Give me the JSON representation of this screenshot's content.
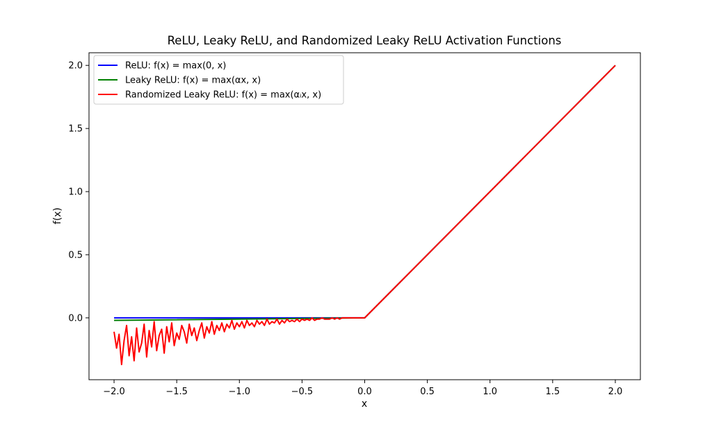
{
  "chart_data": {
    "type": "line",
    "title": "ReLU, Leaky ReLU, and Randomized Leaky ReLU Activation Functions",
    "xlabel": "x",
    "ylabel": "f(x)",
    "xlim": [
      -2.2,
      2.2
    ],
    "ylim": [
      -0.49,
      2.1
    ],
    "xticks": [
      -2.0,
      -1.5,
      -1.0,
      -0.5,
      0.0,
      0.5,
      1.0,
      1.5,
      2.0
    ],
    "xtick_labels": [
      "−2.0",
      "−1.5",
      "−1.0",
      "−0.5",
      "0.0",
      "0.5",
      "1.0",
      "1.5",
      "2.0"
    ],
    "yticks": [
      0.0,
      0.5,
      1.0,
      1.5,
      2.0
    ],
    "ytick_labels": [
      "0.0",
      "0.5",
      "1.0",
      "1.5",
      "2.0"
    ],
    "grid": false,
    "legend_position": "top-left",
    "series": [
      {
        "name": "ReLU: f(x) = max(0, x)",
        "color": "#0000ff",
        "x": [
          -2.0,
          0.0,
          2.0
        ],
        "y": [
          0.0,
          0.0,
          2.0
        ]
      },
      {
        "name": "Leaky ReLU: f(x) = max(αx, x)",
        "color": "#008000",
        "x": [
          -2.0,
          0.0,
          2.0
        ],
        "y": [
          -0.02,
          0.0,
          2.0
        ]
      },
      {
        "name": "Randomized Leaky ReLU: f(x) = max(αᵢx, x)",
        "color": "#ff0000",
        "x": [
          -2.0,
          -1.98,
          -1.96,
          -1.94,
          -1.92,
          -1.9,
          -1.88,
          -1.86,
          -1.84,
          -1.82,
          -1.8,
          -1.78,
          -1.76,
          -1.74,
          -1.72,
          -1.7,
          -1.68,
          -1.66,
          -1.64,
          -1.62,
          -1.6,
          -1.58,
          -1.56,
          -1.54,
          -1.52,
          -1.5,
          -1.48,
          -1.46,
          -1.44,
          -1.42,
          -1.4,
          -1.38,
          -1.36,
          -1.34,
          -1.32,
          -1.3,
          -1.28,
          -1.26,
          -1.24,
          -1.22,
          -1.2,
          -1.18,
          -1.16,
          -1.14,
          -1.12,
          -1.1,
          -1.08,
          -1.06,
          -1.04,
          -1.02,
          -1.0,
          -0.98,
          -0.96,
          -0.94,
          -0.92,
          -0.9,
          -0.88,
          -0.86,
          -0.84,
          -0.82,
          -0.8,
          -0.78,
          -0.76,
          -0.74,
          -0.72,
          -0.7,
          -0.68,
          -0.66,
          -0.64,
          -0.62,
          -0.6,
          -0.58,
          -0.56,
          -0.54,
          -0.52,
          -0.5,
          -0.48,
          -0.46,
          -0.44,
          -0.42,
          -0.4,
          -0.38,
          -0.36,
          -0.34,
          -0.32,
          -0.3,
          -0.28,
          -0.26,
          -0.24,
          -0.22,
          -0.2,
          -0.18,
          -0.16,
          -0.14,
          -0.12,
          -0.1,
          -0.08,
          -0.06,
          -0.04,
          -0.02,
          0.0,
          2.0
        ],
        "y": [
          -0.11,
          -0.24,
          -0.13,
          -0.37,
          -0.18,
          -0.06,
          -0.3,
          -0.15,
          -0.34,
          -0.08,
          -0.27,
          -0.2,
          -0.05,
          -0.31,
          -0.1,
          -0.23,
          -0.03,
          -0.26,
          -0.14,
          -0.09,
          -0.28,
          -0.07,
          -0.19,
          -0.04,
          -0.22,
          -0.12,
          -0.17,
          -0.06,
          -0.11,
          -0.2,
          -0.05,
          -0.14,
          -0.08,
          -0.18,
          -0.1,
          -0.04,
          -0.16,
          -0.07,
          -0.12,
          -0.03,
          -0.13,
          -0.06,
          -0.1,
          -0.04,
          -0.11,
          -0.05,
          -0.08,
          -0.02,
          -0.09,
          -0.04,
          -0.07,
          -0.03,
          -0.08,
          -0.02,
          -0.06,
          -0.04,
          -0.07,
          -0.02,
          -0.05,
          -0.03,
          -0.06,
          -0.01,
          -0.05,
          -0.03,
          -0.04,
          -0.01,
          -0.05,
          -0.02,
          -0.04,
          -0.01,
          -0.03,
          -0.02,
          -0.03,
          -0.01,
          -0.03,
          -0.01,
          -0.02,
          -0.01,
          -0.02,
          0.0,
          -0.02,
          -0.01,
          -0.01,
          0.0,
          -0.01,
          -0.01,
          -0.01,
          0.0,
          -0.01,
          0.0,
          -0.01,
          0.0,
          0.0,
          0.0,
          0.0,
          0.0,
          0.0,
          0.0,
          0.0,
          0.0,
          0.0,
          2.0
        ]
      }
    ]
  }
}
